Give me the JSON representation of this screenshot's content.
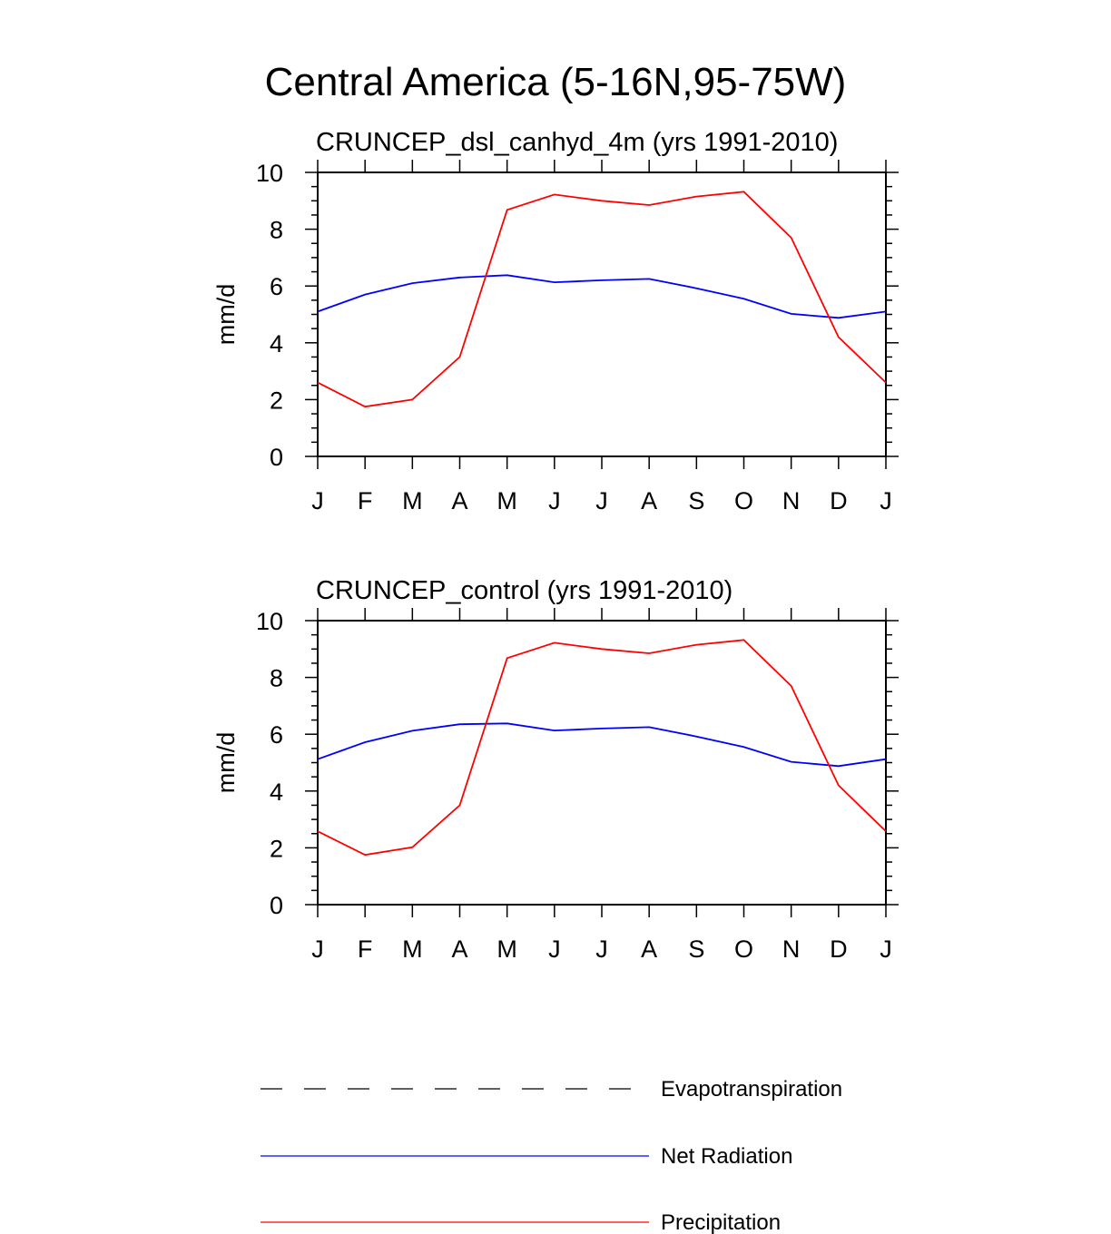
{
  "title": "Central America (5-16N,95-75W)",
  "chart_data": [
    {
      "type": "line",
      "title": "CRUNCEP_dsl_canhyd_4m (yrs 1991-2010)",
      "xlabel": "",
      "ylabel": "mm/d",
      "ylim": [
        0,
        10
      ],
      "yticks": [
        0,
        2,
        4,
        6,
        8,
        10
      ],
      "ytick_labels": [
        "0",
        "2",
        "4",
        "6",
        "8",
        "10"
      ],
      "categories": [
        "J",
        "F",
        "M",
        "A",
        "M",
        "J",
        "J",
        "A",
        "S",
        "O",
        "N",
        "D",
        "J"
      ],
      "series": [
        {
          "name": "Net Radiation",
          "color": "#0000ff",
          "values": [
            5.1,
            5.7,
            6.1,
            6.3,
            6.38,
            6.13,
            6.2,
            6.25,
            5.92,
            5.55,
            5.02,
            4.88,
            5.1
          ]
        },
        {
          "name": "Precipitation",
          "color": "#ff0000",
          "values": [
            2.6,
            1.75,
            2.0,
            3.5,
            8.68,
            9.22,
            9.0,
            8.85,
            9.15,
            9.32,
            7.7,
            4.2,
            2.6
          ]
        }
      ]
    },
    {
      "type": "line",
      "title": "CRUNCEP_control (yrs 1991-2010)",
      "xlabel": "",
      "ylabel": "mm/d",
      "ylim": [
        0,
        10
      ],
      "yticks": [
        0,
        2,
        4,
        6,
        8,
        10
      ],
      "ytick_labels": [
        "0",
        "2",
        "4",
        "6",
        "8",
        "10"
      ],
      "categories": [
        "J",
        "F",
        "M",
        "A",
        "M",
        "J",
        "J",
        "A",
        "S",
        "O",
        "N",
        "D",
        "J"
      ],
      "series": [
        {
          "name": "Net Radiation",
          "color": "#0000ff",
          "values": [
            5.12,
            5.72,
            6.12,
            6.35,
            6.38,
            6.13,
            6.2,
            6.25,
            5.92,
            5.55,
            5.03,
            4.88,
            5.12
          ]
        },
        {
          "name": "Precipitation",
          "color": "#ff0000",
          "values": [
            2.58,
            1.75,
            2.02,
            3.5,
            8.68,
            9.22,
            9.0,
            8.85,
            9.15,
            9.32,
            7.7,
            4.2,
            2.58
          ]
        }
      ]
    }
  ],
  "legend": [
    {
      "label": "Evapotranspiration",
      "color": "#000000",
      "style": "dashed"
    },
    {
      "label": "Net Radiation",
      "color": "#0000ff",
      "style": "solid"
    },
    {
      "label": "Precipitation",
      "color": "#ff0000",
      "style": "solid"
    }
  ]
}
